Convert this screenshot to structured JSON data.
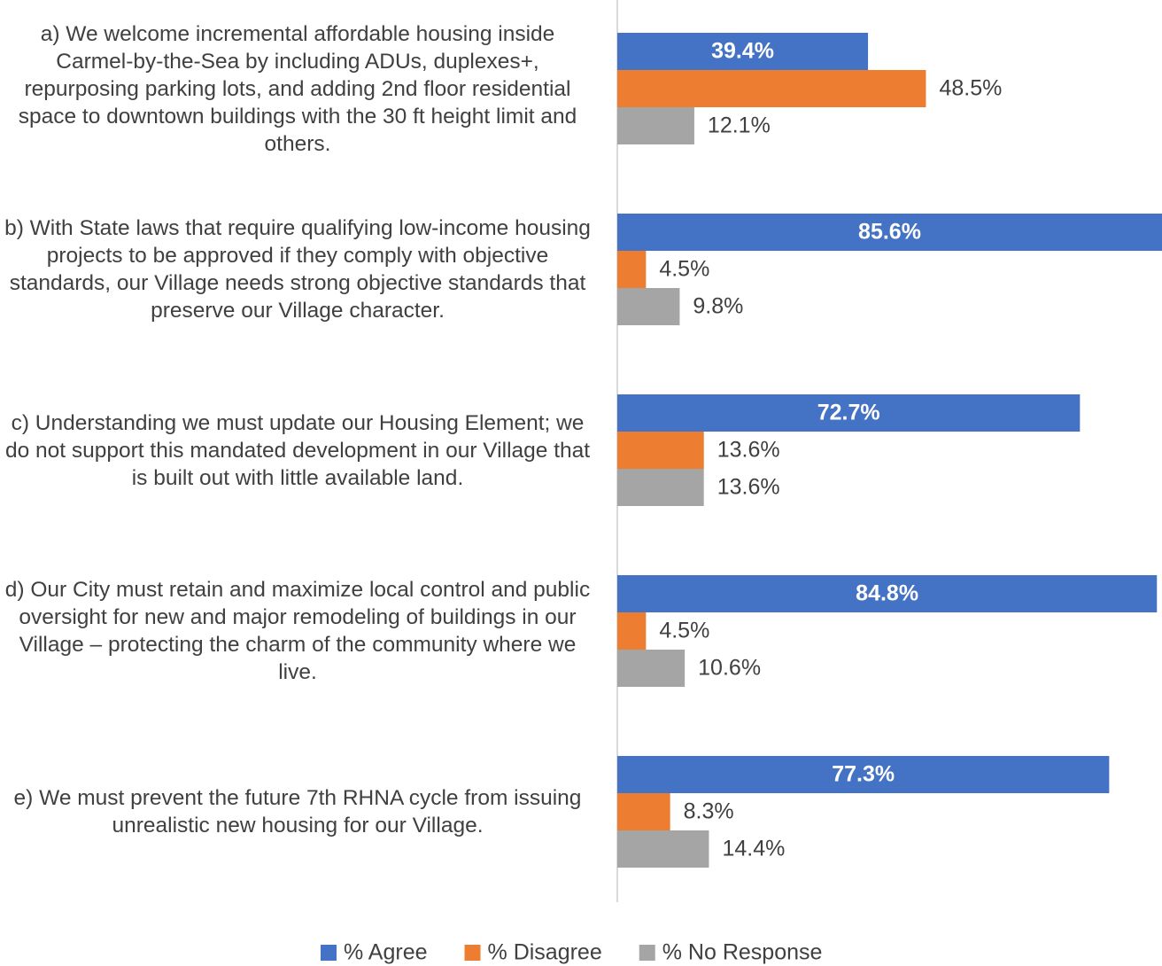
{
  "chart_data": {
    "type": "hbar",
    "categories": [
      "a) We welcome incremental affordable housing inside Carmel-by-the-Sea by including ADUs, duplexes+, repurposing parking lots, and adding 2nd floor residential space to downtown buildings with the 30 ft height limit and others.",
      "b) With State laws that require qualifying low-income housing projects to be approved if they comply with objective standards, our Village needs strong objective standards that preserve our Village character.",
      "c) Understanding we must update our Housing Element; we do not support this mandated development in our Village that is built out with little available land.",
      "d) Our City must retain and maximize local control and public oversight for new and major remodeling of buildings in our Village – protecting the charm of the community where we live.",
      "e) We must prevent the future 7th RHNA cycle from issuing unrealistic new housing for our Village."
    ],
    "series": [
      {
        "name": "% Agree",
        "color": "#4472c4",
        "values": [
          39.4,
          85.6,
          72.7,
          84.8,
          77.3
        ],
        "value_labels": [
          "39.4%",
          "85.6%",
          "72.7%",
          "84.8%",
          "77.3%"
        ]
      },
      {
        "name": "% Disagree",
        "color": "#ed7d31",
        "values": [
          48.5,
          4.5,
          13.6,
          4.5,
          8.3
        ],
        "value_labels": [
          "48.5%",
          "4.5%",
          "13.6%",
          "4.5%",
          "8.3%"
        ]
      },
      {
        "name": "% No Response",
        "color": "#a5a5a5",
        "values": [
          12.1,
          9.8,
          13.6,
          10.6,
          14.4
        ],
        "value_labels": [
          "12.1%",
          "9.8%",
          "13.6%",
          "10.6%",
          "14.4%"
        ]
      }
    ],
    "xlim": [
      0,
      85.6
    ],
    "legend": "bottom"
  }
}
